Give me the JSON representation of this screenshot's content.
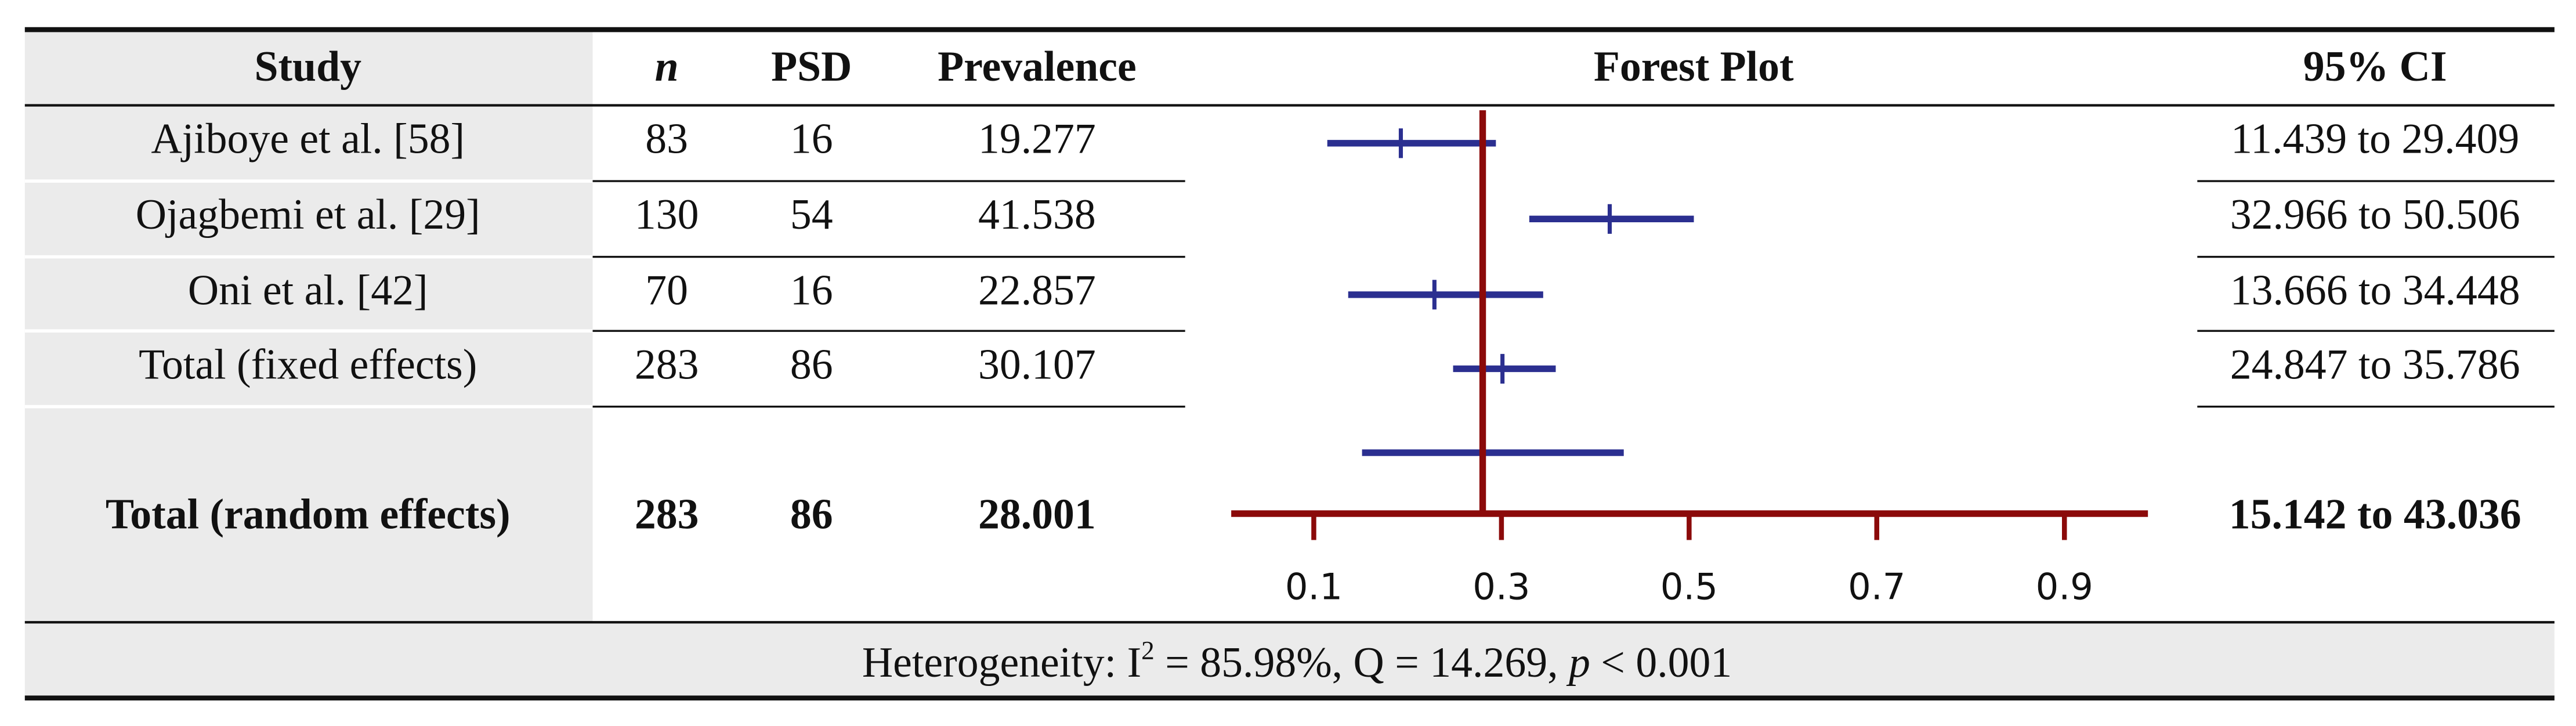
{
  "table": {
    "header": [
      "Study",
      "n",
      "PSD",
      "Prevalence",
      "Forest Plot",
      "95% CI"
    ],
    "rows": [
      [
        "Ajiboye et al. [58]",
        83,
        16,
        19.277,
        "11.439 to 29.409"
      ],
      [
        "Ojagbemi et al. [29]",
        130,
        54,
        41.538,
        "32.966 to 50.506"
      ],
      [
        "Oni et al. [42]",
        70,
        16,
        22.857,
        "13.666 to 34.448"
      ],
      [
        "Total (fixed effects)",
        283,
        86,
        30.107,
        "24.847 to 35.786"
      ],
      [
        "Total (random effects)",
        283,
        86,
        28.001,
        "15.142 to 43.036"
      ]
    ],
    "footer": [
      "Heterogeneity: I",
      "2",
      " = 85.98%, Q = 14.269, ",
      "p",
      " < 0.001"
    ]
  },
  "forest": {
    "xlim": [
      0.012,
      0.989
    ],
    "xticks": [
      0.1,
      0.3,
      0.5,
      0.7,
      0.9
    ],
    "reference": 0.28001,
    "estimates": [
      0.19277,
      0.41538,
      0.22857,
      0.30107,
      0.28001
    ],
    "lower": [
      0.11439,
      0.32966,
      0.13666,
      0.24847,
      0.15142
    ],
    "upper": [
      0.29409,
      0.50506,
      0.34448,
      0.35786,
      0.43036
    ],
    "color": "#2b2f90",
    "axis_color": "#8b0a0a",
    "tick_label_color": "#2b3aa8"
  }
}
